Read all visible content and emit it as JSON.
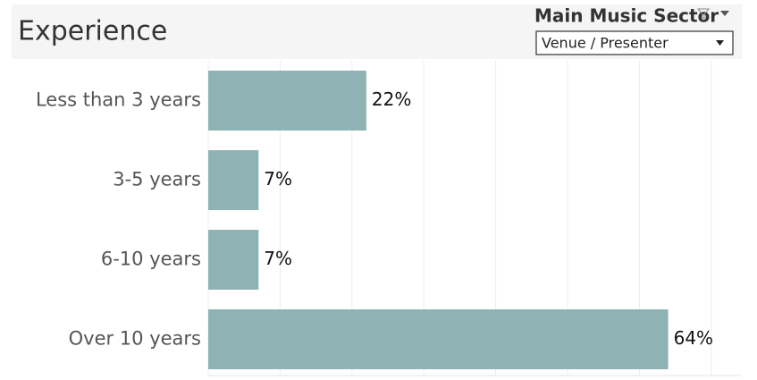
{
  "chart_data": {
    "type": "bar",
    "orientation": "horizontal",
    "title": "Experience",
    "categories": [
      "Less than 3 years",
      "3-5 years",
      "6-10 years",
      "Over 10 years"
    ],
    "values": [
      22,
      7,
      7,
      64
    ],
    "value_labels": [
      "22%",
      "7%",
      "7%",
      "64%"
    ],
    "color": "#8fb3b5",
    "xlim": [
      0,
      74
    ],
    "xticks": [
      0,
      10,
      20,
      30,
      40,
      50,
      60,
      70
    ],
    "grid": true
  },
  "filter": {
    "label": "Main Music Sector",
    "selected": "Venue / Presenter"
  }
}
